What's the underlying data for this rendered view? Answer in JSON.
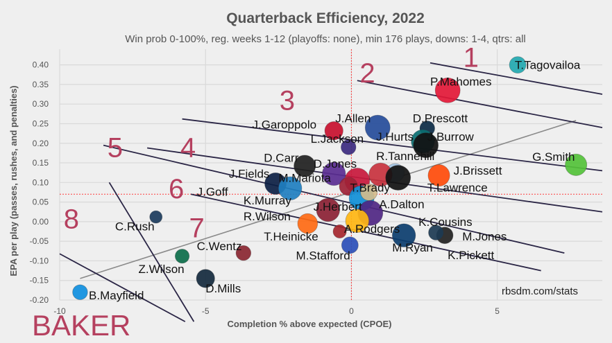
{
  "title": "Quarterback Efficiency, 2022",
  "subtitle": "Win prob 0-100%, reg. weeks 1-12 (playoffs: none), min 176 plays, downs: 1-4, qtrs: all",
  "credit": "rbsdm.com/stats",
  "overlay_label": "BAKER",
  "tier_numbers": [
    "1",
    "2",
    "3",
    "4",
    "5",
    "6",
    "7",
    "8"
  ],
  "colors": {
    "background": "#efefef",
    "grid": "#d9d9d9",
    "ref_line": "#ff3b3b",
    "tier_line": "#2a2545",
    "accent": "#b5405f",
    "fit_line": "#8a8a8a"
  },
  "chart_data": {
    "type": "scatter",
    "title": "Quarterback Efficiency, 2022",
    "subtitle": "Win prob 0-100%, reg. weeks 1-12 (playoffs: none), min 176 plays, downs: 1-4, qtrs: all",
    "xlabel": "Completion % above expected (CPOE)",
    "ylabel": "EPA per play (passes, rushes, and penalties)",
    "xlim": [
      -10,
      8.6
    ],
    "ylim": [
      -0.2,
      0.44
    ],
    "x_ticks": [
      -10,
      -5,
      0,
      5
    ],
    "y_ticks": [
      0.4,
      0.35,
      0.3,
      0.25,
      0.2,
      0.15,
      0.1,
      0.05,
      0.0,
      -0.05,
      -0.1,
      -0.15,
      -0.2
    ],
    "x_tick_labels": [
      "-10",
      "-5",
      "0",
      "5"
    ],
    "y_tick_labels": [
      "0.40",
      "0.35",
      "0.30",
      "0.25",
      "0.20",
      "0.15",
      "0.10",
      "0.05",
      "0.00",
      "-0.05",
      "-0.10",
      "-0.15",
      "-0.20"
    ],
    "grid": true,
    "reference_lines": {
      "x": 0,
      "y": 0.07
    },
    "points": [
      {
        "name": "T.Tagovailoa",
        "x": 5.7,
        "y": 0.4,
        "size": 0.5,
        "color": "#22a8b0"
      },
      {
        "name": "P.Mahomes",
        "x": 3.3,
        "y": 0.335,
        "size": 1.0,
        "color": "#e31837"
      },
      {
        "name": "J.Allen",
        "x": 0.9,
        "y": 0.24,
        "size": 1.0,
        "color": "#254c9a"
      },
      {
        "name": "J.Garoppolo",
        "x": -0.6,
        "y": 0.232,
        "size": 0.6,
        "color": "#c8102e"
      },
      {
        "name": "D.Prescott",
        "x": 2.6,
        "y": 0.238,
        "size": 0.4,
        "color": "#0b2a45"
      },
      {
        "name": "J.Hurts",
        "x": 2.45,
        "y": 0.205,
        "size": 0.9,
        "color": "#0a6f72"
      },
      {
        "name": "J.Burrow",
        "x": 2.55,
        "y": 0.195,
        "size": 1.0,
        "color": "#111111"
      },
      {
        "name": "L.Jackson",
        "x": -0.1,
        "y": 0.19,
        "size": 0.4,
        "color": "#3c2a80"
      },
      {
        "name": "G.Smith",
        "x": 7.7,
        "y": 0.145,
        "size": 0.8,
        "color": "#54c23a"
      },
      {
        "name": "R.Tannehill",
        "x": 1.5,
        "y": 0.125,
        "size": 0.6,
        "color": "#a3c4e4"
      },
      {
        "name": "J.Brissett",
        "x": 3.0,
        "y": 0.118,
        "size": 0.8,
        "color": "#ff4b0a"
      },
      {
        "name": "D.Carr",
        "x": -1.6,
        "y": 0.142,
        "size": 0.8,
        "color": "#1f1f1f"
      },
      {
        "name": "D.Jones",
        "x": -0.6,
        "y": 0.122,
        "size": 0.9,
        "color": "#5a2d91"
      },
      {
        "name": "T.Brady",
        "x": 1.0,
        "y": 0.12,
        "size": 0.9,
        "color": "#c8323e"
      },
      {
        "name": "T.Lawrence",
        "x": 1.6,
        "y": 0.112,
        "size": 1.0,
        "color": "#111111"
      },
      {
        "name": "M.Mariota",
        "x": 0.2,
        "y": 0.105,
        "size": 1.0,
        "color": "#c8183c"
      },
      {
        "name": "J.Fields",
        "x": -2.6,
        "y": 0.097,
        "size": 0.8,
        "color": "#0c1f44"
      },
      {
        "name": "J.Goff",
        "x": -2.1,
        "y": 0.085,
        "size": 0.9,
        "color": "#1f7fc0"
      },
      {
        "name": "K.Murray",
        "x": -0.1,
        "y": 0.09,
        "size": 0.6,
        "color": "#9e2236"
      },
      {
        "name": "J.Herbert",
        "x": 0.35,
        "y": 0.06,
        "size": 1.0,
        "color": "#1090d8"
      },
      {
        "name": "A.Dalton",
        "x": 0.6,
        "y": 0.075,
        "size": 0.5,
        "color": "#d3bc8d"
      },
      {
        "name": "R.Wilson",
        "x": -0.8,
        "y": 0.03,
        "size": 0.9,
        "color": "#8b2134"
      },
      {
        "name": "K.Cousins",
        "x": 0.65,
        "y": 0.022,
        "size": 1.0,
        "color": "#4f2683"
      },
      {
        "name": "T.Heinicke",
        "x": -1.5,
        "y": -0.005,
        "size": 0.7,
        "color": "#ff6a13"
      },
      {
        "name": "A.Rodgers",
        "x": 0.2,
        "y": 0.002,
        "size": 0.9,
        "color": "#ffb612"
      },
      {
        "name": "M.Ryan",
        "x": 1.8,
        "y": -0.035,
        "size": 0.9,
        "color": "#0b3d6e"
      },
      {
        "name": "A.Rodgers-2",
        "x": -0.4,
        "y": -0.025,
        "size": 0.3,
        "color": "#a5262e",
        "unlabeled": true
      },
      {
        "name": "M.Jones",
        "x": 3.2,
        "y": -0.035,
        "size": 0.5,
        "color": "#222222"
      },
      {
        "name": "K.Pickett",
        "x": 2.9,
        "y": -0.028,
        "size": 0.4,
        "color": "#1c3a52"
      },
      {
        "name": "M.Stafford",
        "x": -0.05,
        "y": -0.06,
        "size": 0.5,
        "color": "#2b4fb8"
      },
      {
        "name": "C.Rush",
        "x": -6.7,
        "y": 0.012,
        "size": 0.25,
        "color": "#1b3b5c"
      },
      {
        "name": "C.Wentz",
        "x": -3.7,
        "y": -0.08,
        "size": 0.4,
        "color": "#8a2631"
      },
      {
        "name": "Z.Wilson",
        "x": -5.8,
        "y": -0.088,
        "size": 0.35,
        "color": "#0c6e4a"
      },
      {
        "name": "D.Mills",
        "x": -5.0,
        "y": -0.145,
        "size": 0.6,
        "color": "#14293d"
      },
      {
        "name": "B.Mayfield",
        "x": -9.3,
        "y": -0.18,
        "size": 0.4,
        "color": "#0f8fe0"
      }
    ],
    "labels": [
      {
        "text": "T.Tagovailoa",
        "x": 5.6,
        "y": 0.4
      },
      {
        "text": "P.Mahomes",
        "x": 2.7,
        "y": 0.358
      },
      {
        "text": "J.Allen",
        "x": -0.55,
        "y": 0.264
      },
      {
        "text": "J.Garoppolo",
        "x": -3.4,
        "y": 0.248
      },
      {
        "text": "D.Prescott",
        "x": 2.1,
        "y": 0.264
      },
      {
        "text": "J.Hurts",
        "x": 0.85,
        "y": 0.217
      },
      {
        "text": "J.Burrow",
        "x": 2.6,
        "y": 0.217
      },
      {
        "text": "L.Jackson",
        "x": -1.4,
        "y": 0.212
      },
      {
        "text": "G.Smith",
        "x": 6.2,
        "y": 0.166
      },
      {
        "text": "R.Tannehill",
        "x": 0.85,
        "y": 0.168
      },
      {
        "text": "J.Brissett",
        "x": 3.5,
        "y": 0.131
      },
      {
        "text": "D.Carr",
        "x": -3.0,
        "y": 0.163
      },
      {
        "text": "D.Jones",
        "x": -1.3,
        "y": 0.148
      },
      {
        "text": "T.Brady",
        "x": -0.05,
        "y": 0.087
      },
      {
        "text": "T.Lawrence",
        "x": 2.6,
        "y": 0.087
      },
      {
        "text": "M.Mariota",
        "x": -2.5,
        "y": 0.112
      },
      {
        "text": "J.Fields",
        "x": -4.2,
        "y": 0.123
      },
      {
        "text": "J.Goff",
        "x": -5.3,
        "y": 0.077
      },
      {
        "text": "K.Murray",
        "x": -3.7,
        "y": 0.055
      },
      {
        "text": "J.Herbert",
        "x": -1.3,
        "y": 0.039
      },
      {
        "text": "A.Dalton",
        "x": 0.95,
        "y": 0.045
      },
      {
        "text": "R.Wilson",
        "x": -3.7,
        "y": 0.014
      },
      {
        "text": "K.Cousins",
        "x": 2.3,
        "y": 0.0
      },
      {
        "text": "T.Heinicke",
        "x": -3.0,
        "y": -0.037
      },
      {
        "text": "A.Rodgers",
        "x": -0.25,
        "y": -0.018
      },
      {
        "text": "M.Ryan",
        "x": 1.4,
        "y": -0.066
      },
      {
        "text": "M.Jones",
        "x": 3.8,
        "y": -0.037
      },
      {
        "text": "K.Pickett",
        "x": 3.3,
        "y": -0.085
      },
      {
        "text": "M.Stafford",
        "x": -1.9,
        "y": -0.086
      },
      {
        "text": "C.Rush",
        "x": -8.1,
        "y": -0.012
      },
      {
        "text": "C.Wentz",
        "x": -5.3,
        "y": -0.062
      },
      {
        "text": "Z.Wilson",
        "x": -7.3,
        "y": -0.12
      },
      {
        "text": "D.Mills",
        "x": -5.0,
        "y": -0.17
      },
      {
        "text": "B.Mayfield",
        "x": -9.0,
        "y": -0.188
      }
    ],
    "tier_numbers": [
      {
        "text": "1",
        "x": 4.1,
        "y": 0.42
      },
      {
        "text": "2",
        "x": 0.55,
        "y": 0.38
      },
      {
        "text": "3",
        "x": -2.2,
        "y": 0.31
      },
      {
        "text": "4",
        "x": -5.6,
        "y": 0.19
      },
      {
        "text": "5",
        "x": -8.1,
        "y": 0.19
      },
      {
        "text": "6",
        "x": -6.0,
        "y": 0.085
      },
      {
        "text": "7",
        "x": -5.3,
        "y": -0.015
      },
      {
        "text": "8",
        "x": -9.6,
        "y": 0.008
      }
    ],
    "tier_lines": [
      [
        [
          2.7,
          0.405
        ],
        [
          8.6,
          0.325
        ]
      ],
      [
        [
          0.2,
          0.36
        ],
        [
          8.6,
          0.24
        ]
      ],
      [
        [
          -5.8,
          0.262
        ],
        [
          8.6,
          0.13
        ]
      ],
      [
        [
          -7.0,
          0.188
        ],
        [
          8.6,
          0.025
        ]
      ],
      [
        [
          -8.5,
          0.195
        ],
        [
          7.3,
          -0.08
        ]
      ],
      [
        [
          -5.5,
          0.07
        ],
        [
          6.5,
          -0.125
        ]
      ],
      [
        [
          -8.3,
          0.1
        ],
        [
          -5.4,
          -0.255
        ]
      ],
      [
        [
          -10.0,
          -0.082
        ],
        [
          -5.7,
          -0.255
        ]
      ]
    ],
    "fit_line": [
      [
        -9.3,
        -0.145
      ],
      [
        7.7,
        0.258
      ]
    ]
  }
}
